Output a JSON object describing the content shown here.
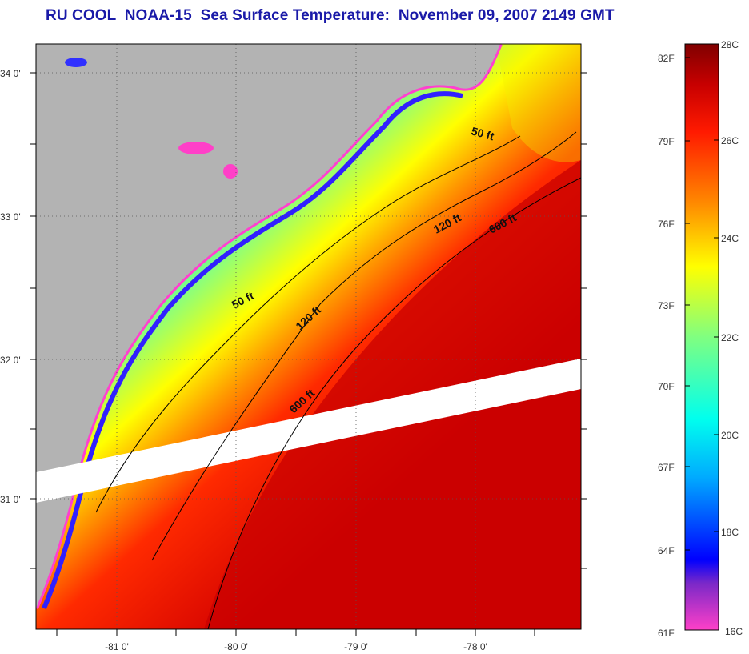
{
  "title": "RU COOL  NOAA-15  Sea Surface Temperature:  November 09, 2007 2149 GMT",
  "map": {
    "lat_labels": [
      "34 0'",
      "33 0'",
      "32 0'",
      "31 0'"
    ],
    "lon_labels": [
      "-81 0'",
      "-80 0'",
      "-79 0'",
      "-78 0'"
    ],
    "contour_labels": [
      {
        "text": "50 ft",
        "name": "contour-50ft-north"
      },
      {
        "text": "120 ft",
        "name": "contour-120ft-north"
      },
      {
        "text": "600 ft",
        "name": "contour-600ft-north"
      },
      {
        "text": "50 ft",
        "name": "contour-50ft-south"
      },
      {
        "text": "120 ft",
        "name": "contour-120ft-south"
      },
      {
        "text": "600 ft",
        "name": "contour-600ft-south"
      }
    ],
    "colors": {
      "land": "#b3b3b3",
      "gap": "#ffffff",
      "warm": "#cc1010",
      "frame": "#000000"
    }
  },
  "colorbar": {
    "celsius_labels": [
      "28C",
      "26C",
      "24C",
      "22C",
      "20C",
      "18C",
      "16C"
    ],
    "fahrenheit_labels": [
      "82F",
      "79F",
      "76F",
      "73F",
      "70F",
      "67F",
      "64F",
      "61F"
    ],
    "stops": [
      "#ff40c8",
      "#7a28c8",
      "#0000ff",
      "#00aaff",
      "#00ffee",
      "#80ff80",
      "#ffff00",
      "#ff8800",
      "#ff1a00",
      "#c80000",
      "#800000"
    ]
  }
}
